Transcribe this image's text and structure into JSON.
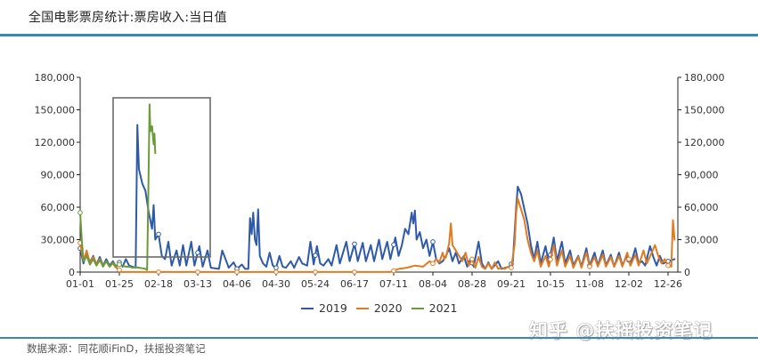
{
  "header": {
    "title": "全国电影票房统计:票房收入:当日值"
  },
  "footer": {
    "source": "数据来源：同花顺iFinD，扶摇投资笔记",
    "watermark": "知乎 @扶摇投资笔记"
  },
  "colors": {
    "accent_rule": "#3a87b8",
    "s2019": "#2e5aa8",
    "s2020": "#e07b22",
    "s2021": "#6a9a3a",
    "highlight_box": "#6b6b6b"
  },
  "legend": [
    {
      "label": "2019",
      "color": "#2e5aa8"
    },
    {
      "label": "2020",
      "color": "#e07b22"
    },
    {
      "label": "2021",
      "color": "#6a9a3a"
    }
  ],
  "chart_data": {
    "type": "line",
    "title": "全国电影票房统计:票房收入:当日值",
    "xlabel": "",
    "ylabel": "",
    "ylim": [
      0,
      180000
    ],
    "y_ticks": [
      "0",
      "30,000",
      "60,000",
      "90,000",
      "120,000",
      "150,000",
      "180,000"
    ],
    "y2_ticks": [
      "0",
      "30,000",
      "60,000",
      "90,000",
      "120,000",
      "150,000",
      "180,000"
    ],
    "x_ticks": [
      "01-01",
      "01-25",
      "02-18",
      "03-13",
      "04-06",
      "04-30",
      "05-24",
      "06-17",
      "07-11",
      "08-04",
      "08-28",
      "09-21",
      "10-15",
      "11-08",
      "12-02",
      "12-26"
    ],
    "grid": false,
    "legend_position": "bottom",
    "annotation": "highlight box around Spring Festival period (approx. 01-21 to 03-12, 0 to 160,000)",
    "series": [
      {
        "name": "2019",
        "color": "#2e5aa8",
        "keypoints_day_value": [
          [
            0,
            22000
          ],
          [
            2,
            8000
          ],
          [
            4,
            18000
          ],
          [
            6,
            9000
          ],
          [
            8,
            15000
          ],
          [
            10,
            7000
          ],
          [
            12,
            14000
          ],
          [
            14,
            6000
          ],
          [
            16,
            12000
          ],
          [
            18,
            6000
          ],
          [
            20,
            10000
          ],
          [
            22,
            5000
          ],
          [
            24,
            9000
          ],
          [
            26,
            5000
          ],
          [
            28,
            12000
          ],
          [
            30,
            6000
          ],
          [
            32,
            5000
          ],
          [
            34,
            4000
          ],
          [
            35,
            136000
          ],
          [
            36,
            95000
          ],
          [
            38,
            82000
          ],
          [
            40,
            75000
          ],
          [
            42,
            55000
          ],
          [
            44,
            40000
          ],
          [
            45,
            62000
          ],
          [
            46,
            30000
          ],
          [
            48,
            35000
          ],
          [
            50,
            15000
          ],
          [
            52,
            12000
          ],
          [
            54,
            28000
          ],
          [
            56,
            6000
          ],
          [
            59,
            20000
          ],
          [
            61,
            6000
          ],
          [
            63,
            25000
          ],
          [
            65,
            6000
          ],
          [
            68,
            28000
          ],
          [
            70,
            6000
          ],
          [
            73,
            24000
          ],
          [
            75,
            5000
          ],
          [
            78,
            20000
          ],
          [
            80,
            4000
          ],
          [
            85,
            3000
          ],
          [
            87,
            20000
          ],
          [
            89,
            12000
          ],
          [
            91,
            4000
          ],
          [
            94,
            9000
          ],
          [
            96,
            3000
          ],
          [
            99,
            7000
          ],
          [
            101,
            3000
          ],
          [
            103,
            3000
          ],
          [
            104,
            50000
          ],
          [
            105,
            35000
          ],
          [
            106,
            55000
          ],
          [
            107,
            30000
          ],
          [
            108,
            25000
          ],
          [
            109,
            58000
          ],
          [
            110,
            15000
          ],
          [
            112,
            8000
          ],
          [
            114,
            5000
          ],
          [
            116,
            18000
          ],
          [
            118,
            6000
          ],
          [
            120,
            4000
          ],
          [
            122,
            15000
          ],
          [
            124,
            5000
          ],
          [
            126,
            4000
          ],
          [
            129,
            10000
          ],
          [
            131,
            4000
          ],
          [
            134,
            14000
          ],
          [
            136,
            8000
          ],
          [
            139,
            6000
          ],
          [
            141,
            28000
          ],
          [
            143,
            7000
          ],
          [
            145,
            24000
          ],
          [
            147,
            8000
          ],
          [
            149,
            6000
          ],
          [
            152,
            12000
          ],
          [
            154,
            6000
          ],
          [
            157,
            25000
          ],
          [
            159,
            8000
          ],
          [
            163,
            28000
          ],
          [
            165,
            10000
          ],
          [
            168,
            26000
          ],
          [
            170,
            10000
          ],
          [
            173,
            27000
          ],
          [
            175,
            10000
          ],
          [
            178,
            25000
          ],
          [
            180,
            10000
          ],
          [
            183,
            30000
          ],
          [
            185,
            12000
          ],
          [
            188,
            28000
          ],
          [
            190,
            12000
          ],
          [
            193,
            32000
          ],
          [
            195,
            15000
          ],
          [
            197,
            25000
          ],
          [
            199,
            40000
          ],
          [
            201,
            35000
          ],
          [
            203,
            55000
          ],
          [
            204,
            45000
          ],
          [
            205,
            57000
          ],
          [
            206,
            30000
          ],
          [
            208,
            37000
          ],
          [
            210,
            22000
          ],
          [
            212,
            30000
          ],
          [
            214,
            15000
          ],
          [
            216,
            28000
          ],
          [
            218,
            12000
          ],
          [
            220,
            8000
          ],
          [
            222,
            10000
          ],
          [
            224,
            15000
          ],
          [
            226,
            22000
          ],
          [
            228,
            10000
          ],
          [
            230,
            18000
          ],
          [
            232,
            8000
          ],
          [
            235,
            15000
          ],
          [
            237,
            5000
          ],
          [
            239,
            12000
          ],
          [
            241,
            5000
          ],
          [
            244,
            28000
          ],
          [
            246,
            8000
          ],
          [
            248,
            3000
          ],
          [
            250,
            9000
          ],
          [
            252,
            3000
          ],
          [
            256,
            10000
          ],
          [
            258,
            3000
          ],
          [
            263,
            5000
          ],
          [
            265,
            10000
          ],
          [
            267,
            60000
          ],
          [
            268,
            79000
          ],
          [
            270,
            72000
          ],
          [
            272,
            58000
          ],
          [
            274,
            45000
          ],
          [
            276,
            25000
          ],
          [
            278,
            12000
          ],
          [
            280,
            28000
          ],
          [
            282,
            8000
          ],
          [
            285,
            24000
          ],
          [
            287,
            8000
          ],
          [
            290,
            32000
          ],
          [
            292,
            10000
          ],
          [
            295,
            28000
          ],
          [
            297,
            8000
          ],
          [
            300,
            20000
          ],
          [
            302,
            6000
          ],
          [
            305,
            15000
          ],
          [
            307,
            5000
          ],
          [
            310,
            22000
          ],
          [
            312,
            6000
          ],
          [
            315,
            18000
          ],
          [
            317,
            6000
          ],
          [
            320,
            20000
          ],
          [
            322,
            6000
          ],
          [
            325,
            16000
          ],
          [
            327,
            5000
          ],
          [
            330,
            18000
          ],
          [
            332,
            6000
          ],
          [
            335,
            16000
          ],
          [
            337,
            6000
          ],
          [
            340,
            22000
          ],
          [
            342,
            8000
          ],
          [
            344,
            10000
          ],
          [
            346,
            6000
          ],
          [
            349,
            24000
          ],
          [
            351,
            14000
          ],
          [
            353,
            6000
          ],
          [
            355,
            15000
          ],
          [
            357,
            8000
          ],
          [
            360,
            10000
          ],
          [
            364,
            12000
          ]
        ]
      },
      {
        "name": "2020",
        "color": "#e07b22",
        "keypoints_day_value": [
          [
            0,
            27000
          ],
          [
            2,
            10000
          ],
          [
            4,
            20000
          ],
          [
            6,
            8000
          ],
          [
            8,
            14000
          ],
          [
            10,
            7000
          ],
          [
            12,
            12000
          ],
          [
            14,
            6000
          ],
          [
            16,
            10000
          ],
          [
            18,
            5000
          ],
          [
            20,
            8000
          ],
          [
            22,
            4000
          ],
          [
            24,
            2000
          ],
          [
            25,
            100
          ],
          [
            190,
            100
          ],
          [
            195,
            3000
          ],
          [
            200,
            4000
          ],
          [
            205,
            6000
          ],
          [
            210,
            5000
          ],
          [
            214,
            10000
          ],
          [
            216,
            8000
          ],
          [
            218,
            12000
          ],
          [
            220,
            9000
          ],
          [
            222,
            18000
          ],
          [
            223,
            12000
          ],
          [
            224,
            14000
          ],
          [
            226,
            27000
          ],
          [
            227,
            45000
          ],
          [
            228,
            25000
          ],
          [
            230,
            20000
          ],
          [
            232,
            15000
          ],
          [
            234,
            10000
          ],
          [
            236,
            18000
          ],
          [
            238,
            6000
          ],
          [
            240,
            12000
          ],
          [
            242,
            4000
          ],
          [
            244,
            14000
          ],
          [
            246,
            5000
          ],
          [
            248,
            3000
          ],
          [
            250,
            8000
          ],
          [
            252,
            3000
          ],
          [
            254,
            9000
          ],
          [
            256,
            3000
          ],
          [
            258,
            4000
          ],
          [
            260,
            3000
          ],
          [
            262,
            5000
          ],
          [
            264,
            4000
          ],
          [
            266,
            25000
          ],
          [
            267,
            55000
          ],
          [
            268,
            68000
          ],
          [
            270,
            58000
          ],
          [
            272,
            48000
          ],
          [
            274,
            30000
          ],
          [
            276,
            18000
          ],
          [
            278,
            10000
          ],
          [
            280,
            20000
          ],
          [
            282,
            5000
          ],
          [
            285,
            15000
          ],
          [
            287,
            5000
          ],
          [
            290,
            25000
          ],
          [
            292,
            6000
          ],
          [
            295,
            20000
          ],
          [
            297,
            5000
          ],
          [
            300,
            15000
          ],
          [
            302,
            4000
          ],
          [
            305,
            14000
          ],
          [
            307,
            4000
          ],
          [
            310,
            18000
          ],
          [
            312,
            5000
          ],
          [
            315,
            14000
          ],
          [
            317,
            5000
          ],
          [
            320,
            16000
          ],
          [
            322,
            5000
          ],
          [
            325,
            14000
          ],
          [
            327,
            5000
          ],
          [
            330,
            15000
          ],
          [
            332,
            5000
          ],
          [
            335,
            18000
          ],
          [
            337,
            6000
          ],
          [
            340,
            16000
          ],
          [
            342,
            6000
          ],
          [
            345,
            20000
          ],
          [
            347,
            8000
          ],
          [
            350,
            18000
          ],
          [
            352,
            25000
          ],
          [
            354,
            15000
          ],
          [
            356,
            8000
          ],
          [
            358,
            12000
          ],
          [
            360,
            6000
          ],
          [
            362,
            5000
          ],
          [
            363,
            48000
          ],
          [
            364,
            30000
          ]
        ]
      },
      {
        "name": "2021",
        "color": "#6a9a3a",
        "keypoints_day_value": [
          [
            0,
            55000
          ],
          [
            1,
            30000
          ],
          [
            2,
            10000
          ],
          [
            4,
            15000
          ],
          [
            6,
            7000
          ],
          [
            8,
            12000
          ],
          [
            10,
            6000
          ],
          [
            12,
            11000
          ],
          [
            14,
            5000
          ],
          [
            16,
            10000
          ],
          [
            18,
            5000
          ],
          [
            20,
            9000
          ],
          [
            22,
            5000
          ],
          [
            24,
            7000
          ],
          [
            26,
            6000
          ],
          [
            28,
            5000
          ],
          [
            30,
            5000
          ],
          [
            32,
            4000
          ],
          [
            34,
            4500
          ],
          [
            36,
            4000
          ],
          [
            38,
            3500
          ],
          [
            40,
            3000
          ],
          [
            41,
            2000
          ],
          [
            42,
            100000
          ],
          [
            42.5,
            155000
          ],
          [
            43,
            130000
          ],
          [
            44,
            135000
          ],
          [
            45,
            118000
          ],
          [
            45.5,
            128000
          ],
          [
            46,
            110000
          ]
        ]
      }
    ]
  }
}
